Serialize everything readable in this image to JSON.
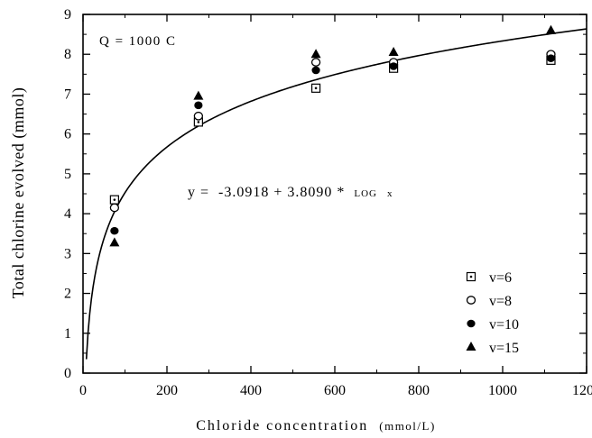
{
  "chart_data": {
    "type": "scatter",
    "xlabel": "Chloride concentration",
    "xlabel_unit": "(mmol/L)",
    "ylabel": "Total chlorine evolved (mmol)",
    "xlim": [
      0,
      1200
    ],
    "ylim": [
      0,
      9
    ],
    "x_ticks": [
      0,
      200,
      400,
      600,
      800,
      1000,
      1200
    ],
    "y_ticks": [
      0,
      1,
      2,
      3,
      4,
      5,
      6,
      7,
      8,
      9
    ],
    "grid": false,
    "legend_position": "bottom-right",
    "annotation": "Q = 1000 C",
    "fit_equation": {
      "prefix": "y =  -3.0918 + 3.8090 * ",
      "log_text": "LOG",
      "var_text": "x",
      "intercept": -3.0918,
      "slope": 3.809
    },
    "series": [
      {
        "name": "v=6",
        "marker": "square-dot",
        "x": [
          75,
          275,
          555,
          740,
          1115
        ],
        "y": [
          4.35,
          6.3,
          7.15,
          7.65,
          7.85
        ]
      },
      {
        "name": "v=8",
        "marker": "open-circle",
        "x": [
          75,
          275,
          555,
          740,
          1115
        ],
        "y": [
          4.15,
          6.45,
          7.8,
          7.8,
          8.0
        ]
      },
      {
        "name": "v=10",
        "marker": "filled-circle",
        "x": [
          75,
          275,
          555,
          740,
          1115
        ],
        "y": [
          3.57,
          6.72,
          7.6,
          7.7,
          7.9
        ]
      },
      {
        "name": "v=15",
        "marker": "filled-triangle",
        "x": [
          75,
          275,
          555,
          740,
          1115
        ],
        "y": [
          3.27,
          6.95,
          8.0,
          8.05,
          8.6
        ]
      }
    ]
  }
}
